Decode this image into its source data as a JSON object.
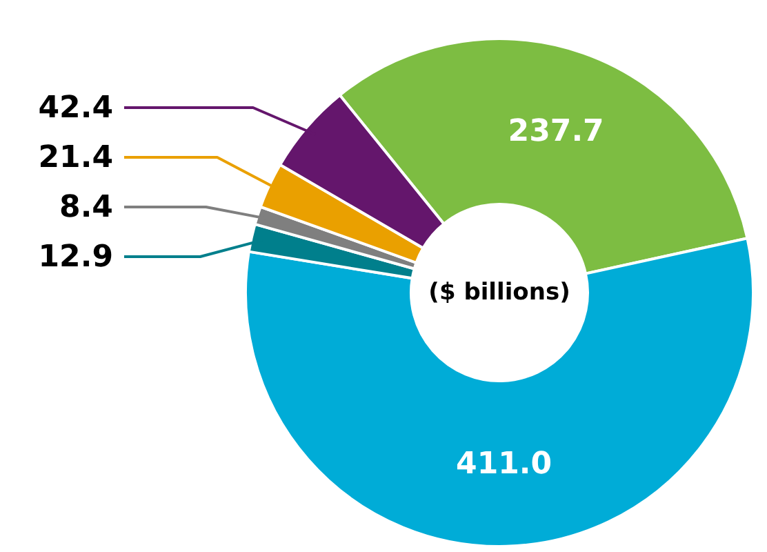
{
  "chart_data": {
    "type": "donut",
    "categories": [
      null,
      null,
      null,
      null,
      null,
      null
    ],
    "values": [
      237.7,
      411.0,
      12.9,
      8.4,
      21.4,
      42.4
    ],
    "colors": [
      "#7dbd42",
      "#00acd7",
      "#007f8c",
      "#7f7f7f",
      "#eaa000",
      "#64166c"
    ],
    "value_labels": [
      "237.7",
      "411.0",
      "12.9",
      "8.4",
      "21.4",
      "42.4"
    ],
    "annotations": [
      "($ billions)"
    ]
  }
}
